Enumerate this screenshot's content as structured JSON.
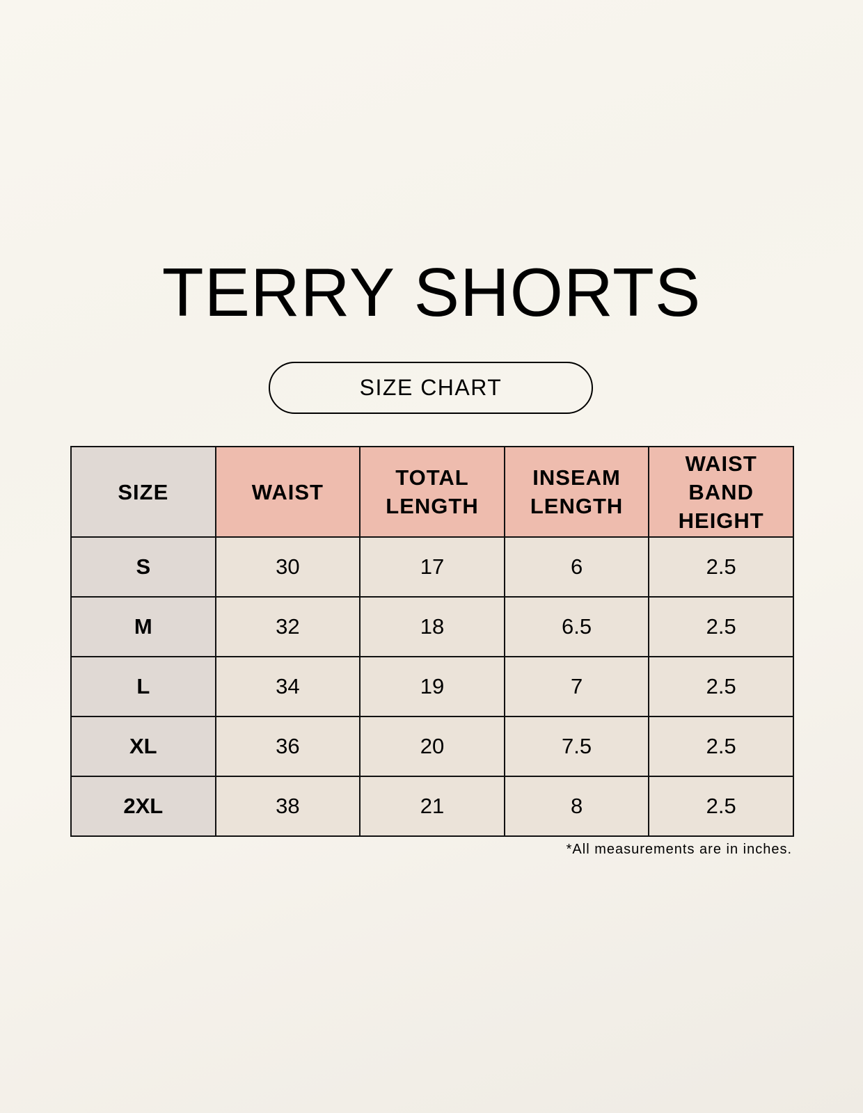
{
  "title": "TERRY SHORTS",
  "subtitle": "SIZE CHART",
  "table": {
    "headers": [
      "SIZE",
      "WAIST",
      "TOTAL LENGTH",
      "INSEAM LENGTH",
      "WAIST BAND HEIGHT"
    ],
    "rows": [
      [
        "S",
        "30",
        "17",
        "6",
        "2.5"
      ],
      [
        "M",
        "32",
        "18",
        "6.5",
        "2.5"
      ],
      [
        "L",
        "34",
        "19",
        "7",
        "2.5"
      ],
      [
        "XL",
        "36",
        "20",
        "7.5",
        "2.5"
      ],
      [
        "2XL",
        "38",
        "21",
        "8",
        "2.5"
      ]
    ]
  },
  "footnote": "*All measurements are in inches.",
  "colors": {
    "header": "#eebcae",
    "size_column": "#e0d9d4",
    "cell": "#ebe3d9",
    "background": "#f8f5ee"
  }
}
